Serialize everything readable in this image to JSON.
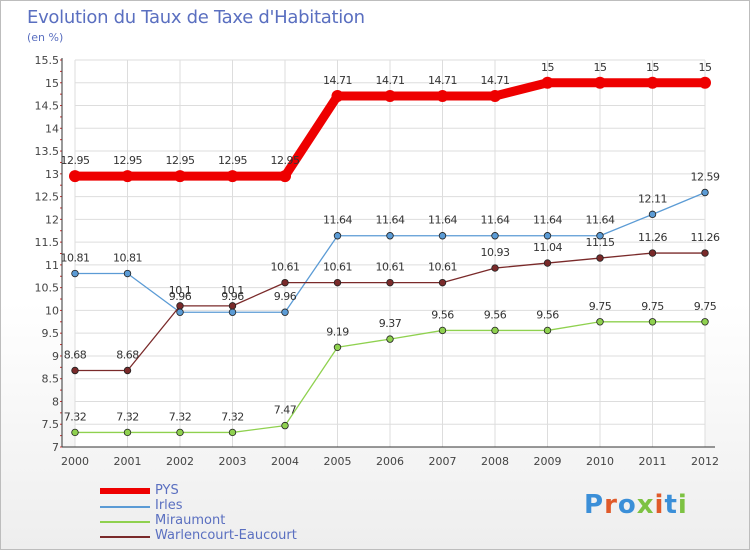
{
  "title": "Evolution du Taux de Taxe d'Habitation",
  "subtitle": "(en %)",
  "logo": {
    "text": "Proxiti",
    "letter_colors": [
      "#3b8fd8",
      "#e05a2a",
      "#3b8fd8",
      "#7dc242",
      "#e05a2a",
      "#3b8fd8",
      "#7dc242"
    ]
  },
  "chart_data": {
    "type": "line",
    "title": "Evolution du Taux de Taxe d'Habitation",
    "ylabel": "(en %)",
    "xlabel": "",
    "x": [
      "2000",
      "2001",
      "2002",
      "2003",
      "2004",
      "2005",
      "2006",
      "2007",
      "2008",
      "2009",
      "2010",
      "2011",
      "2012"
    ],
    "ylim": [
      7,
      15.5
    ],
    "yticks": [
      "7",
      "7.5",
      "8",
      "8.5",
      "9",
      "9.5",
      "10",
      "10.5",
      "11",
      "11.5",
      "12",
      "12.5",
      "13",
      "13.5",
      "14",
      "14.5",
      "15",
      "15.5"
    ],
    "grid": true,
    "legend_position": "bottom-left",
    "series": [
      {
        "name": "PYS",
        "color": "#ee0000",
        "values": [
          12.95,
          12.95,
          12.95,
          12.95,
          12.95,
          14.71,
          14.71,
          14.71,
          14.71,
          15,
          15,
          15,
          15
        ],
        "labels": [
          "12.95",
          "12.95",
          "12.95",
          "12.95",
          "12.95",
          "14.71",
          "14.71",
          "14.71",
          "14.71",
          "15",
          "15",
          "15",
          "15"
        ]
      },
      {
        "name": "Irles",
        "color": "#5b9bd5",
        "values": [
          10.81,
          10.81,
          9.96,
          9.96,
          9.96,
          11.64,
          11.64,
          11.64,
          11.64,
          11.64,
          11.64,
          12.11,
          12.59
        ],
        "labels": [
          "10.81",
          "10.81",
          "9.96",
          "9.96",
          "9.96",
          "11.64",
          "11.64",
          "11.64",
          "11.64",
          "11.64",
          "11.64",
          "12.11",
          "12.59"
        ]
      },
      {
        "name": "Miraumont",
        "color": "#8fd14f",
        "values": [
          7.32,
          7.32,
          7.32,
          7.32,
          7.47,
          9.19,
          9.37,
          9.56,
          9.56,
          9.56,
          9.75,
          9.75,
          9.75
        ],
        "labels": [
          "7.32",
          "7.32",
          "7.32",
          "7.32",
          "7.47",
          "9.19",
          "9.37",
          "9.56",
          "9.56",
          "9.56",
          "9.75",
          "9.75",
          "9.75"
        ]
      },
      {
        "name": "Warlencourt-Eaucourt",
        "color": "#7a2a2a",
        "values": [
          8.68,
          8.68,
          10.1,
          10.1,
          10.61,
          10.61,
          10.61,
          10.61,
          10.93,
          11.04,
          11.15,
          11.26,
          11.26
        ],
        "labels": [
          "8.68",
          "8.68",
          "10.1",
          "10.1",
          "10.61",
          "10.61",
          "10.61",
          "10.61",
          "10.93",
          "11.04",
          "11.15",
          "11.26",
          "11.26"
        ]
      }
    ]
  }
}
